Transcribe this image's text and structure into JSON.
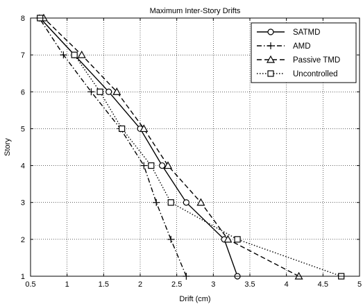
{
  "chart_data": {
    "type": "line",
    "title": "Maximum Inter-Story Drifts",
    "xlabel": "Drift (cm)",
    "ylabel": "Story",
    "xlim": [
      0.5,
      5
    ],
    "ylim": [
      1,
      8
    ],
    "xticks": [
      "0.5",
      "1",
      "1.5",
      "2",
      "2.5",
      "3",
      "3.5",
      "4",
      "4.5",
      "5"
    ],
    "yticks": [
      "1",
      "2",
      "3",
      "4",
      "5",
      "6",
      "7",
      "8"
    ],
    "grid": true,
    "legend_position": "top-right",
    "series": [
      {
        "name": "SATMD",
        "marker": "circle",
        "dash": "solid",
        "color": "#000000",
        "points": [
          [
            3.33,
            1
          ],
          [
            3.15,
            2
          ],
          [
            2.63,
            3
          ],
          [
            2.3,
            4
          ],
          [
            2.0,
            5
          ],
          [
            1.57,
            6
          ],
          [
            1.1,
            7
          ],
          [
            0.63,
            8
          ]
        ]
      },
      {
        "name": "AMD",
        "marker": "plus",
        "dash": "dashdot",
        "color": "#000000",
        "points": [
          [
            2.63,
            1
          ],
          [
            2.42,
            2
          ],
          [
            2.22,
            3
          ],
          [
            2.05,
            4
          ],
          [
            1.73,
            5
          ],
          [
            1.33,
            6
          ],
          [
            0.95,
            7
          ],
          [
            0.62,
            8
          ]
        ]
      },
      {
        "name": "Passive TMD",
        "marker": "triangle",
        "dash": "dashed",
        "color": "#000000",
        "points": [
          [
            4.17,
            1
          ],
          [
            3.2,
            2
          ],
          [
            2.83,
            3
          ],
          [
            2.38,
            4
          ],
          [
            2.05,
            5
          ],
          [
            1.68,
            6
          ],
          [
            1.2,
            7
          ],
          [
            0.68,
            8
          ]
        ]
      },
      {
        "name": "Uncontrolled",
        "marker": "square",
        "dash": "dotted",
        "color": "#000000",
        "points": [
          [
            4.75,
            1
          ],
          [
            3.33,
            2
          ],
          [
            2.42,
            3
          ],
          [
            2.15,
            4
          ],
          [
            1.75,
            5
          ],
          [
            1.45,
            6
          ],
          [
            1.1,
            7
          ],
          [
            0.63,
            8
          ]
        ]
      }
    ]
  }
}
